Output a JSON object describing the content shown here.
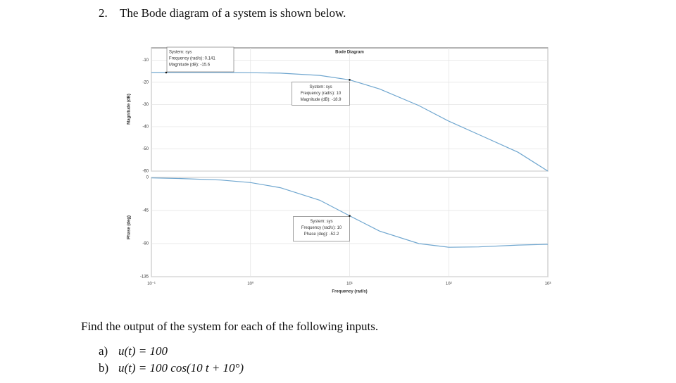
{
  "question": {
    "number": "2.",
    "text": "The Bode diagram of a system is shown below."
  },
  "chart_data": [
    {
      "type": "line",
      "title": "Bode Diagram",
      "y_label": "Magnitude (dB)",
      "xscale": "log",
      "grid": true,
      "color": "#6fa6cf",
      "x": [
        0.1,
        0.2,
        0.5,
        1,
        2,
        5,
        10,
        20,
        50,
        100,
        200,
        500,
        1000
      ],
      "values": [
        -15.6,
        -15.6,
        -15.6,
        -15.7,
        -15.9,
        -16.9,
        -18.9,
        -23,
        -30.5,
        -37.5,
        -43.5,
        -51.5,
        -60
      ],
      "xlim": [
        0.1,
        1000
      ],
      "xticks": [
        0.1,
        1,
        10,
        100,
        1000
      ],
      "ylim": [
        -60,
        -4.5
      ],
      "yticks": [
        -10,
        -20,
        -30,
        -40,
        -50,
        -60
      ],
      "annotations": [
        {
          "x": 0.141,
          "y": -15.6,
          "lines": [
            "System: sys",
            "Frequency (rad/s): 0.141",
            "Magnitude (dB): -15.6"
          ]
        },
        {
          "x": 10,
          "y": -18.9,
          "lines": [
            "System: sys",
            "Frequency (rad/s): 10",
            "Magnitude (dB): -18.9"
          ]
        }
      ]
    },
    {
      "type": "line",
      "y_label": "Phase (deg)",
      "x_label": "Frequency (rad/s)",
      "xscale": "log",
      "grid": true,
      "color": "#6fa6cf",
      "x": [
        0.1,
        0.2,
        0.5,
        1,
        2,
        5,
        10,
        20,
        50,
        100,
        200,
        500,
        1000
      ],
      "values": [
        -0.7,
        -1.5,
        -3.5,
        -7,
        -14,
        -31,
        -52.2,
        -73,
        -90,
        -95,
        -94.5,
        -92,
        -91
      ],
      "xlim": [
        0.1,
        1000
      ],
      "xticks": [
        {
          "value": 0.1,
          "label": "10⁻¹"
        },
        {
          "value": 1,
          "label": "10⁰"
        },
        {
          "value": 10,
          "label": "10¹"
        },
        {
          "value": 100,
          "label": "10²"
        },
        {
          "value": 1000,
          "label": "10³"
        }
      ],
      "ylim": [
        -135,
        0
      ],
      "yticks": [
        0,
        -45,
        -90,
        -135
      ],
      "annotations": [
        {
          "x": 10,
          "y": -52.2,
          "lines": [
            "System: sys",
            "Frequency (rad/s): 10",
            "Phase (deg): -52.2"
          ]
        }
      ]
    }
  ],
  "prompt": "Find the output of the system for each of the following inputs.",
  "items": [
    {
      "label": "a)",
      "expr": "u(t) = 100"
    },
    {
      "label": "b)",
      "expr": "u(t) = 100 cos(10 t + 10°)"
    }
  ]
}
